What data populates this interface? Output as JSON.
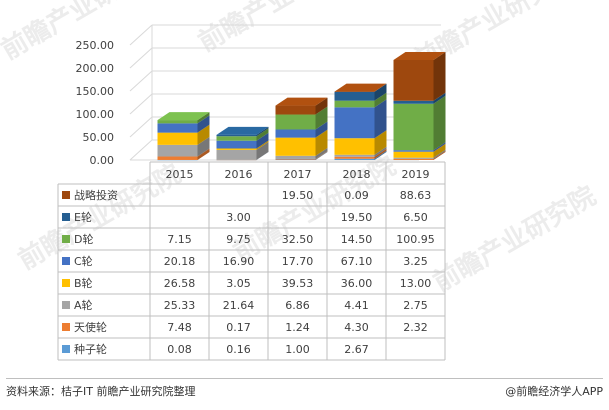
{
  "chart_data": {
    "type": "bar",
    "stacked": true,
    "style": "3d",
    "categories": [
      "2015",
      "2016",
      "2017",
      "2018",
      "2019"
    ],
    "series": [
      {
        "name": "种子轮",
        "color": "#5b9bd5",
        "values": [
          0.08,
          0.16,
          1.0,
          2.67,
          null
        ]
      },
      {
        "name": "天使轮",
        "color": "#ed7d31",
        "values": [
          7.48,
          0.17,
          1.24,
          4.3,
          2.32
        ]
      },
      {
        "name": "A轮",
        "color": "#a5a5a5",
        "values": [
          25.33,
          21.64,
          6.86,
          4.41,
          2.75
        ]
      },
      {
        "name": "B轮",
        "color": "#ffc000",
        "values": [
          26.58,
          3.05,
          39.53,
          36.0,
          13.0
        ]
      },
      {
        "name": "C轮",
        "color": "#4472c4",
        "values": [
          20.18,
          16.9,
          17.7,
          67.1,
          3.25
        ]
      },
      {
        "name": "D轮",
        "color": "#70ad47",
        "values": [
          7.15,
          9.75,
          32.5,
          14.5,
          100.95
        ]
      },
      {
        "name": "E轮",
        "color": "#255e91",
        "values": [
          null,
          3.0,
          null,
          19.5,
          6.5
        ]
      },
      {
        "name": "战略投资",
        "color": "#9e480e",
        "values": [
          null,
          null,
          19.5,
          0.09,
          88.63
        ]
      }
    ],
    "yticks": [
      "0.00",
      "50.00",
      "100.00",
      "150.00",
      "200.00",
      "250.00"
    ],
    "ylim": [
      0,
      250
    ],
    "grid": true,
    "legend": "table-below"
  },
  "table_values": [
    [
      "0.08",
      "0.16",
      "1.00",
      "2.67",
      ""
    ],
    [
      "7.48",
      "0.17",
      "1.24",
      "4.30",
      "2.32"
    ],
    [
      "25.33",
      "21.64",
      "6.86",
      "4.41",
      "2.75"
    ],
    [
      "26.58",
      "3.05",
      "39.53",
      "36.00",
      "13.00"
    ],
    [
      "20.18",
      "16.90",
      "17.70",
      "67.10",
      "3.25"
    ],
    [
      "7.15",
      "9.75",
      "32.50",
      "14.50",
      "100.95"
    ],
    [
      "",
      "3.00",
      "",
      "19.50",
      "6.50"
    ],
    [
      "",
      "",
      "19.50",
      "0.09",
      "88.63"
    ]
  ],
  "watermark": "前瞻产业研究院",
  "footer": {
    "source": "资料来源：桔子IT 前瞻产业研究院整理",
    "brand": "@前瞻经济学人APP"
  }
}
